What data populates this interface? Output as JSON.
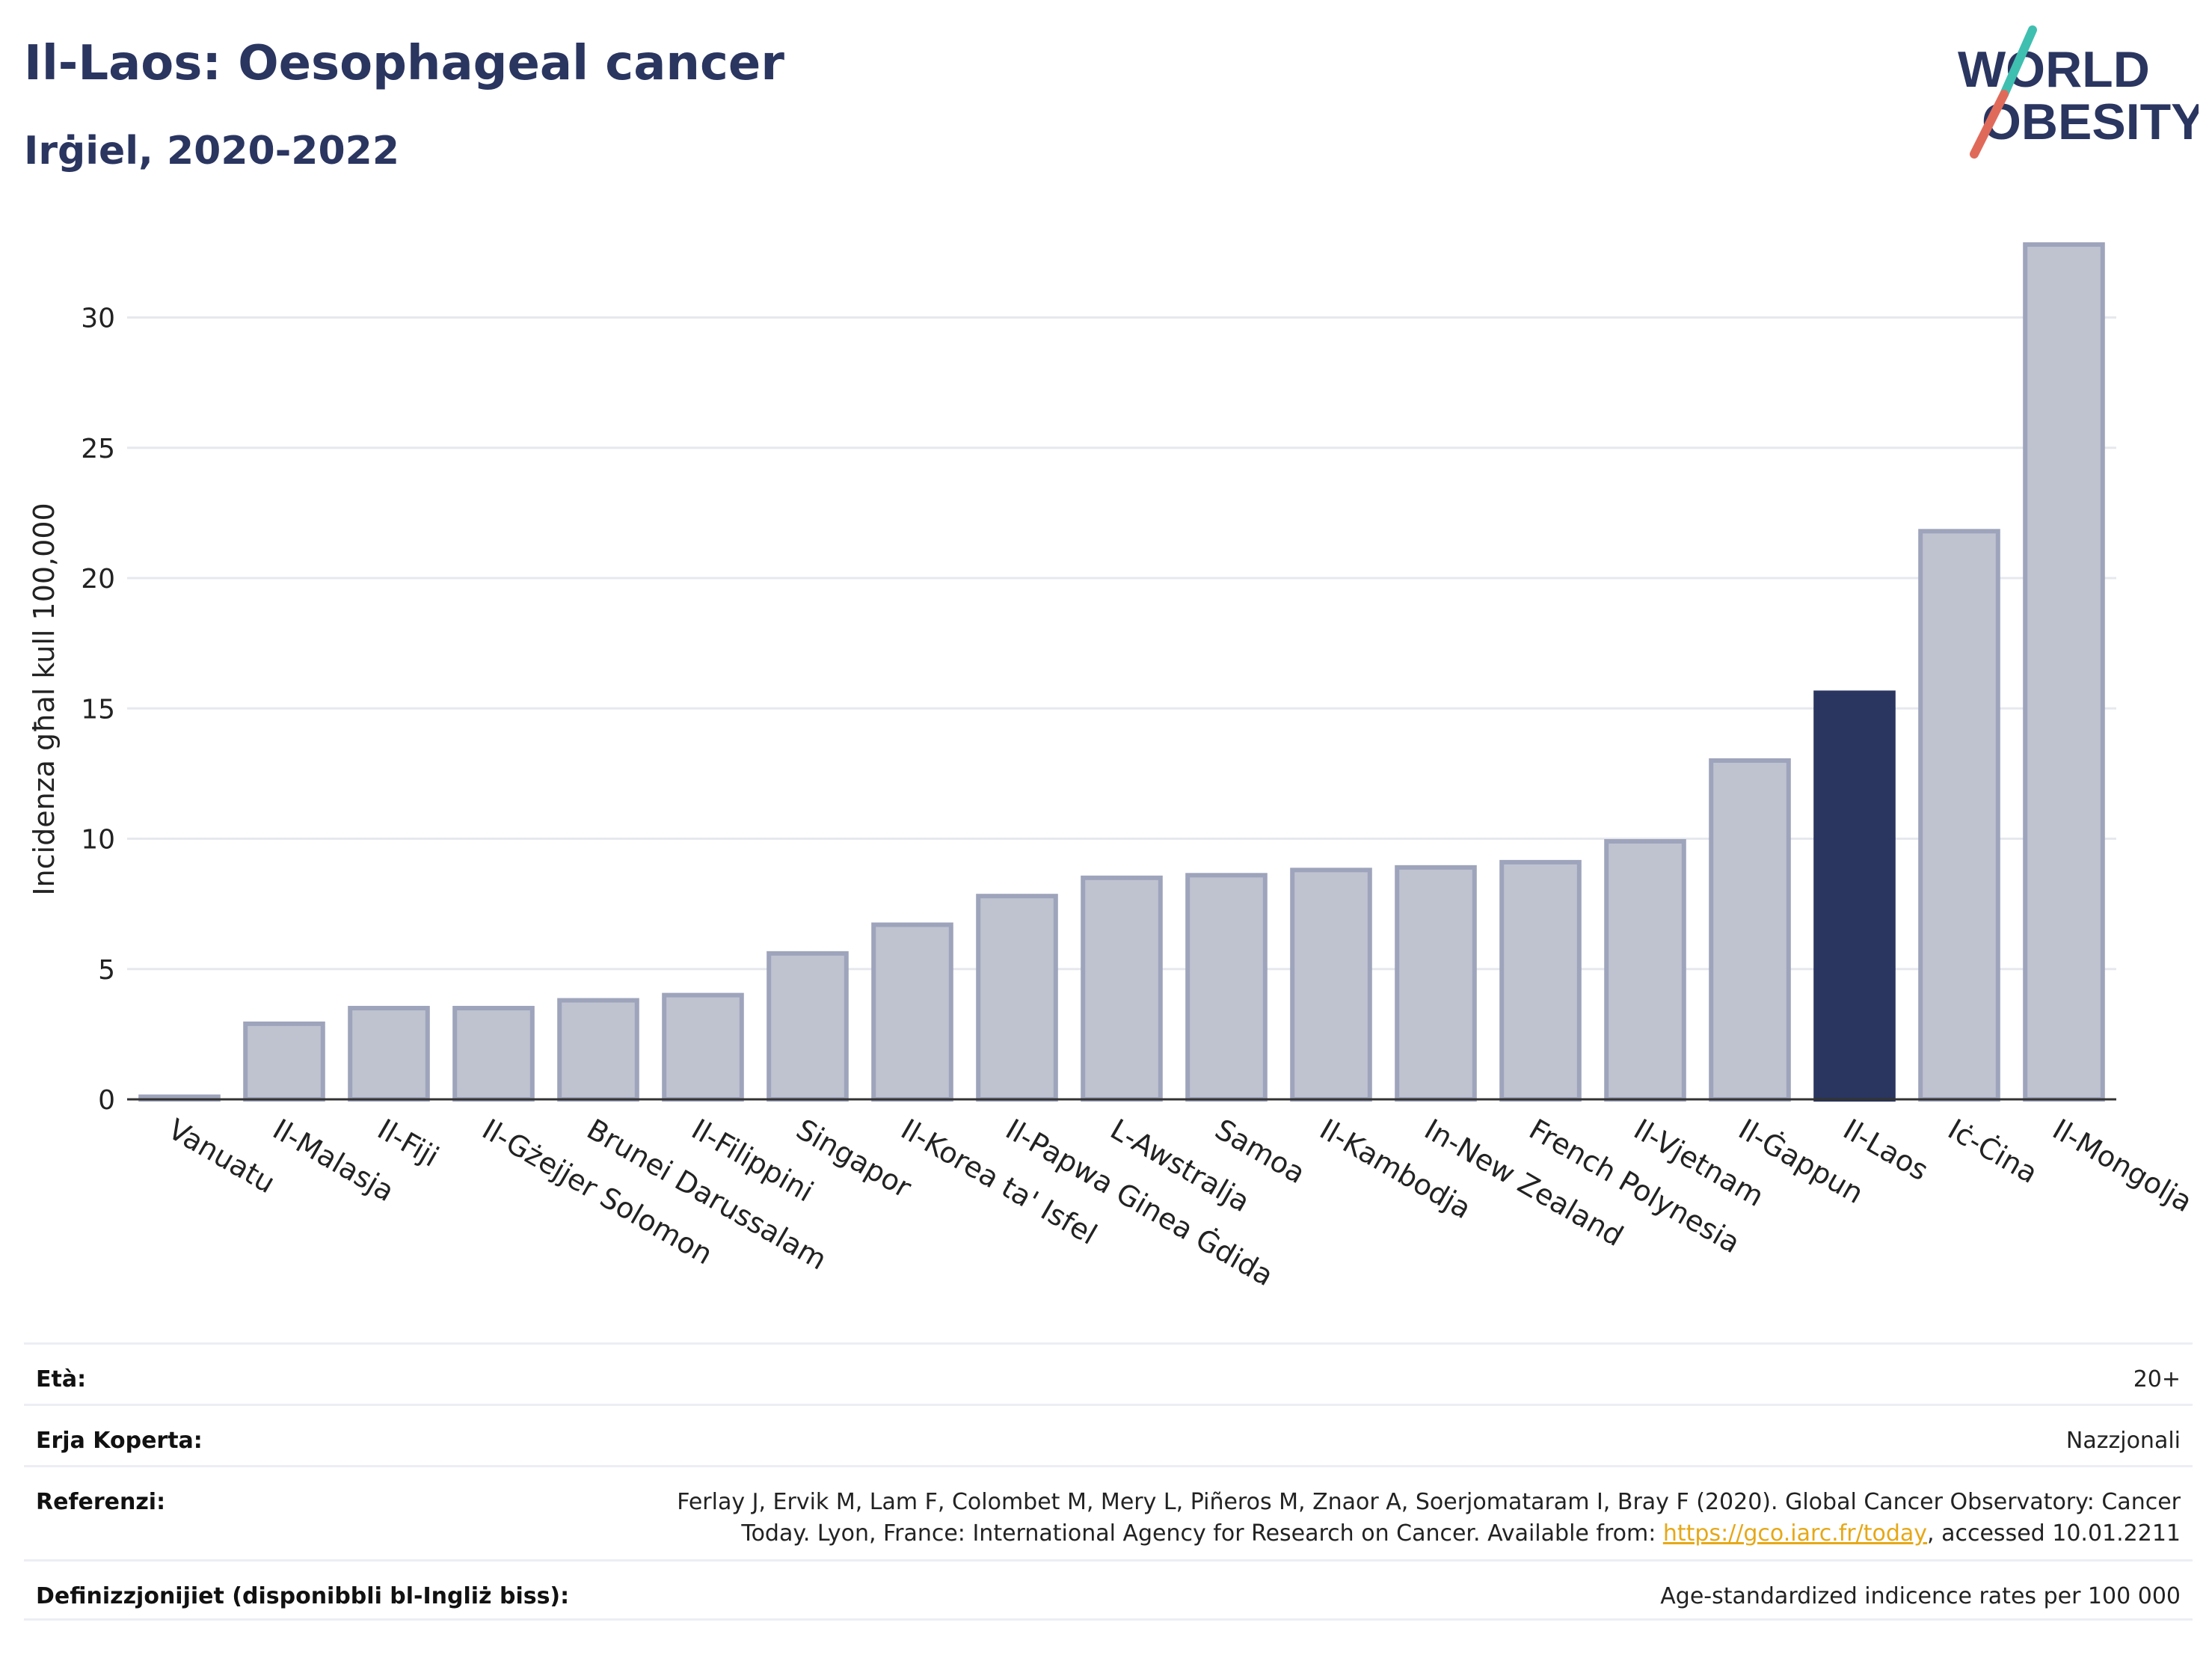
{
  "header": {
    "title": "Il-Laos: Oesophageal cancer",
    "subtitle": "Irġiel, 2020-2022"
  },
  "logo": {
    "line1": "WORLD",
    "line2": "OBESITY",
    "colors": {
      "text": "#2a3560",
      "slash_teal": "#3fbfb0",
      "slash_red": "#e06a5a"
    }
  },
  "chart_data": {
    "type": "bar",
    "ylabel": "Incidenza għal kull 100,000",
    "xlabel": "",
    "ylim": [
      0,
      33
    ],
    "yticks": [
      0,
      5,
      10,
      15,
      20,
      25,
      30
    ],
    "grid": true,
    "categories": [
      "Vanuatu",
      "Il-Malasja",
      "Il-Fiji",
      "Il-Gżejjer Solomon",
      "Brunei Darussalam",
      "Il-Filippini",
      "Singapor",
      "Il-Korea ta' Isfel",
      "Il-Papwa Ginea Ġdida",
      "L-Awstralja",
      "Samoa",
      "Il-Kambodja",
      "In-New Zealand",
      "French Polynesia",
      "Il-Vjetnam",
      "Il-Ġappun",
      "Il-Laos",
      "Iċ-Ċina",
      "Il-Mongolja"
    ],
    "values": [
      0.1,
      2.9,
      3.5,
      3.5,
      3.8,
      4.0,
      5.6,
      6.7,
      7.8,
      8.5,
      8.6,
      8.8,
      8.9,
      9.1,
      9.9,
      13.0,
      15.6,
      21.8,
      32.8
    ],
    "highlight": "Il-Laos",
    "colors": {
      "bar": "#bfc3d0",
      "bar_edge": "#9ea4bb",
      "highlight": "#2a3560"
    }
  },
  "meta": {
    "rows": [
      {
        "label": "Età:",
        "value": "20+"
      },
      {
        "label": "Erja Koperta:",
        "value": "Nazzjonali"
      },
      {
        "label": "Referenzi:",
        "value": "Ferlay J, Ervik M, Lam F, Colombet M, Mery L, Piñeros M, Znaor A, Soerjomataram I, Bray F (2020). Global Cancer Observatory: Cancer",
        "value2": "Today. Lyon, France: International Agency for Research on Cancer. Available from: ",
        "link": "https://gco.iarc.fr/today",
        "value3": ", accessed 10.01.2211"
      },
      {
        "label": "Definizzjonijiet (disponibbli bl-Ingliż biss):",
        "value": "Age-standardized indicence rates per 100 000"
      }
    ]
  }
}
